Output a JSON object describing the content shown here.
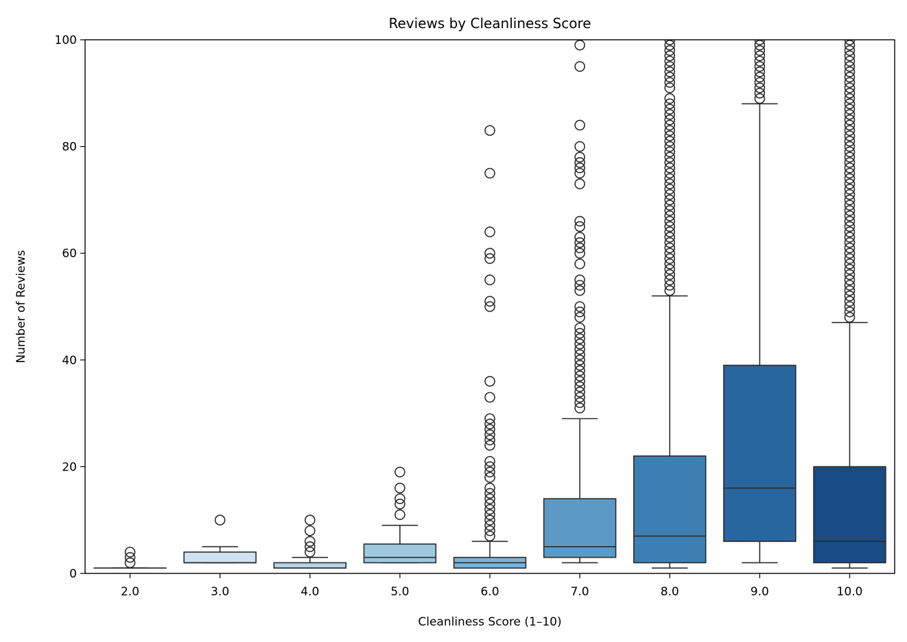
{
  "chart_data": {
    "type": "box",
    "title": "Reviews by Cleanliness Score",
    "xlabel": "Cleanliness Score (1–10)",
    "ylabel": "Number of Reviews",
    "ylim": [
      0,
      100
    ],
    "yticks": [
      0,
      20,
      40,
      60,
      80,
      100
    ],
    "grid": false,
    "legend": "none",
    "categories": [
      "2.0",
      "3.0",
      "4.0",
      "5.0",
      "6.0",
      "7.0",
      "8.0",
      "9.0",
      "10.0"
    ],
    "boxes": [
      {
        "category": "2.0",
        "whisker_low": 1,
        "q1": 1,
        "median": 1,
        "q3": 1,
        "whisker_high": 1,
        "color": "#deebf7",
        "outliers": [
          2,
          3,
          4
        ]
      },
      {
        "category": "3.0",
        "whisker_low": 2,
        "q1": 2,
        "median": 2,
        "q3": 4,
        "whisker_high": 5,
        "color": "#d0e2f2",
        "outliers": [
          10
        ]
      },
      {
        "category": "4.0",
        "whisker_low": 1,
        "q1": 1,
        "median": 1,
        "q3": 2,
        "whisker_high": 3,
        "color": "#b8d5ea",
        "outliers": [
          4,
          5,
          6,
          8,
          10
        ]
      },
      {
        "category": "5.0",
        "whisker_low": 2,
        "q1": 2,
        "median": 3,
        "q3": 5.5,
        "whisker_high": 9,
        "color": "#9cc8e0",
        "outliers": [
          11,
          13,
          14,
          16,
          19
        ]
      },
      {
        "category": "6.0",
        "whisker_low": 1,
        "q1": 1,
        "median": 2,
        "q3": 3,
        "whisker_high": 6,
        "color": "#7bb3d9",
        "outliers": [
          7,
          8,
          9,
          10,
          11,
          12,
          13,
          14,
          15,
          16,
          18,
          19,
          20,
          21,
          24,
          25,
          26,
          27,
          28,
          29,
          33,
          36,
          50,
          51,
          55,
          59,
          60,
          64,
          75,
          83
        ]
      },
      {
        "category": "7.0",
        "whisker_low": 2,
        "q1": 3,
        "median": 5,
        "q3": 14,
        "whisker_high": 29,
        "color": "#5b9ac5",
        "outliers": [
          31,
          32,
          33,
          34,
          35,
          36,
          37,
          38,
          39,
          40,
          41,
          42,
          43,
          44,
          45,
          46,
          48,
          49,
          50,
          53,
          54,
          55,
          58,
          60,
          61,
          62,
          63,
          65,
          66,
          73,
          75,
          76,
          77,
          78,
          80,
          84,
          95,
          99
        ]
      },
      {
        "category": "8.0",
        "whisker_low": 1,
        "q1": 2,
        "median": 7,
        "q3": 22,
        "whisker_high": 52,
        "color": "#3d7fb2",
        "outliers": [
          53,
          54,
          55,
          56,
          57,
          58,
          59,
          60,
          61,
          62,
          63,
          64,
          65,
          66,
          67,
          68,
          69,
          70,
          71,
          72,
          73,
          74,
          75,
          76,
          77,
          78,
          79,
          80,
          81,
          82,
          83,
          84,
          85,
          86,
          87,
          88,
          89,
          91,
          92,
          93,
          94,
          95,
          96,
          97,
          98,
          99,
          100
        ]
      },
      {
        "category": "9.0",
        "whisker_low": 2,
        "q1": 6,
        "median": 16,
        "q3": 39,
        "whisker_high": 88,
        "color": "#2866a0",
        "outliers": [
          89,
          90,
          91,
          92,
          93,
          94,
          95,
          96,
          97,
          98,
          99,
          100
        ]
      },
      {
        "category": "10.0",
        "whisker_low": 1,
        "q1": 2,
        "median": 6,
        "q3": 20,
        "whisker_high": 47,
        "color": "#194b85",
        "outliers": [
          48,
          49,
          50,
          51,
          52,
          53,
          54,
          55,
          56,
          57,
          58,
          59,
          60,
          61,
          62,
          63,
          64,
          65,
          66,
          67,
          68,
          69,
          70,
          71,
          72,
          73,
          74,
          75,
          76,
          77,
          78,
          79,
          80,
          81,
          82,
          83,
          84,
          85,
          86,
          87,
          88,
          89,
          90,
          91,
          92,
          93,
          94,
          95,
          96,
          97,
          98,
          99,
          100
        ]
      }
    ]
  }
}
